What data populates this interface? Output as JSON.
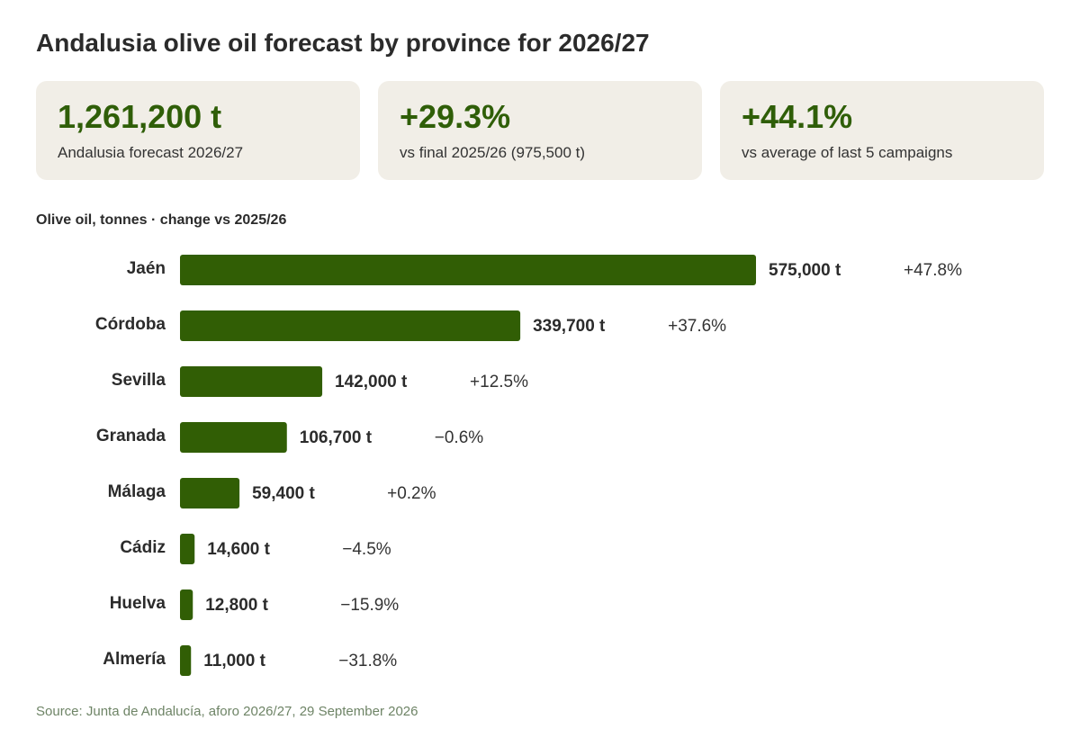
{
  "title": "Andalusia olive oil forecast by province for 2026/27",
  "colors": {
    "accent": "#2f5e08",
    "bar": "#315e05",
    "card_bg": "#f1eee7",
    "text": "#2b2b2b",
    "source": "#6e8466"
  },
  "kpis": [
    {
      "value": "1,261,200 t",
      "label": "Andalusia forecast 2026/27"
    },
    {
      "value": "+29.3%",
      "label": "vs final 2025/26 (975,500 t)"
    },
    {
      "value": "+44.1%",
      "label": "vs average of last 5 campaigns"
    }
  ],
  "chart_subtitle": "Olive oil, tonnes · change vs 2025/26",
  "chart_data": {
    "type": "bar",
    "orientation": "horizontal",
    "title": "Olive oil, tonnes · change vs 2025/26",
    "unit": "t",
    "categories": [
      "Jaén",
      "Córdoba",
      "Sevilla",
      "Granada",
      "Málaga",
      "Cádiz",
      "Huelva",
      "Almería"
    ],
    "values": [
      575000,
      339700,
      142000,
      106700,
      59400,
      14600,
      12800,
      11000
    ],
    "value_labels": [
      "575,000 t",
      "339,700 t",
      "142,000 t",
      "106,700 t",
      "59,400 t",
      "14,600 t",
      "12,800 t",
      "11,000 t"
    ],
    "changes": [
      47.8,
      37.6,
      12.5,
      -0.6,
      0.2,
      -4.5,
      -15.9,
      -31.8
    ],
    "change_labels": [
      "+47.8%",
      "+37.6%",
      "+12.5%",
      "−0.6%",
      "+0.2%",
      "−4.5%",
      "−15.9%",
      "−31.8%"
    ],
    "xlim": [
      0,
      575000
    ],
    "grid": false,
    "legend": "none"
  },
  "source": "Source: Junta de Andalucía, aforo 2026/27, 29 September 2026"
}
